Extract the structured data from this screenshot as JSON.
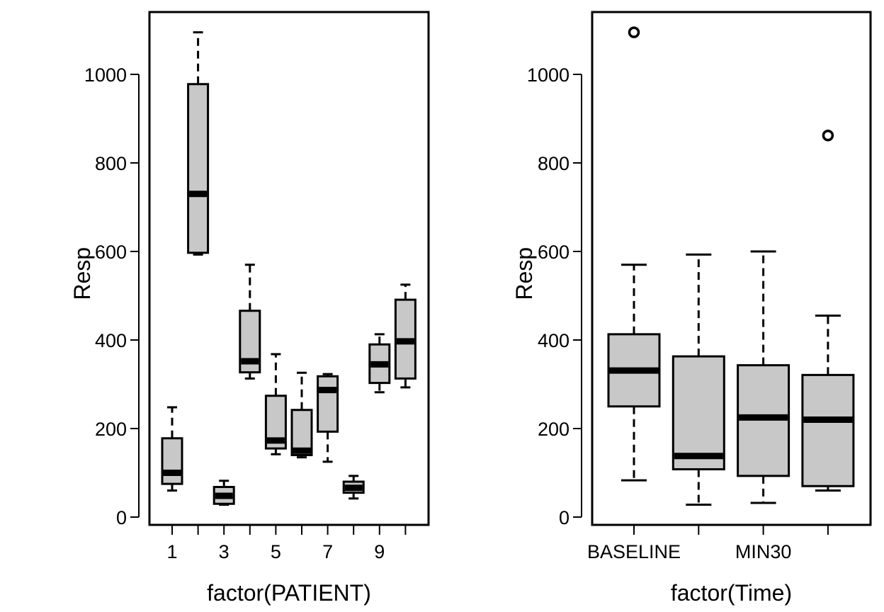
{
  "chart_data": [
    {
      "type": "boxplot",
      "xlabel": "factor(PATIENT)",
      "ylabel": "Resp",
      "ylim": [
        0,
        1100
      ],
      "yticks": [
        0,
        200,
        400,
        600,
        800,
        1000
      ],
      "categories": [
        "1",
        "2",
        "3",
        "4",
        "5",
        "6",
        "7",
        "8",
        "9",
        "10"
      ],
      "xtick_labels": [
        "1",
        "",
        "3",
        "",
        "5",
        "",
        "7",
        "",
        "9",
        ""
      ],
      "boxes": [
        {
          "category": "1",
          "min": 60,
          "q1": 75,
          "median": 100,
          "q3": 178,
          "max": 248,
          "outliers": []
        },
        {
          "category": "2",
          "min": 593,
          "q1": 597,
          "median": 730,
          "q3": 978,
          "max": 1095,
          "outliers": []
        },
        {
          "category": "3",
          "min": 28,
          "q1": 30,
          "median": 48,
          "q3": 68,
          "max": 82,
          "outliers": []
        },
        {
          "category": "4",
          "min": 313,
          "q1": 327,
          "median": 352,
          "q3": 466,
          "max": 570,
          "outliers": []
        },
        {
          "category": "5",
          "min": 142,
          "q1": 155,
          "median": 173,
          "q3": 274,
          "max": 368,
          "outliers": []
        },
        {
          "category": "6",
          "min": 135,
          "q1": 140,
          "median": 150,
          "q3": 242,
          "max": 326,
          "outliers": []
        },
        {
          "category": "7",
          "min": 125,
          "q1": 193,
          "median": 287,
          "q3": 318,
          "max": 323,
          "outliers": []
        },
        {
          "category": "8",
          "min": 42,
          "q1": 55,
          "median": 66,
          "q3": 80,
          "max": 93,
          "outliers": []
        },
        {
          "category": "9",
          "min": 282,
          "q1": 303,
          "median": 345,
          "q3": 390,
          "max": 413,
          "outliers": []
        },
        {
          "category": "10",
          "min": 293,
          "q1": 313,
          "median": 397,
          "q3": 491,
          "max": 525,
          "outliers": []
        }
      ]
    },
    {
      "type": "boxplot",
      "xlabel": "factor(Time)",
      "ylabel": "Resp",
      "ylim": [
        0,
        1100
      ],
      "yticks": [
        0,
        200,
        400,
        600,
        800,
        1000
      ],
      "categories": [
        "BASELINE",
        "",
        "MIN30",
        ""
      ],
      "xtick_labels": [
        "BASELINE",
        "",
        "MIN30",
        ""
      ],
      "boxes": [
        {
          "category": "BASELINE",
          "min": 83,
          "q1": 250,
          "median": 331,
          "q3": 413,
          "max": 570,
          "outliers": [
            1095
          ]
        },
        {
          "category": "",
          "min": 28,
          "q1": 108,
          "median": 138,
          "q3": 363,
          "max": 593,
          "outliers": []
        },
        {
          "category": "MIN30",
          "min": 32,
          "q1": 93,
          "median": 225,
          "q3": 343,
          "max": 600,
          "outliers": []
        },
        {
          "category": "",
          "min": 60,
          "q1": 70,
          "median": 220,
          "q3": 321,
          "max": 455,
          "outliers": [
            862
          ]
        }
      ]
    }
  ]
}
